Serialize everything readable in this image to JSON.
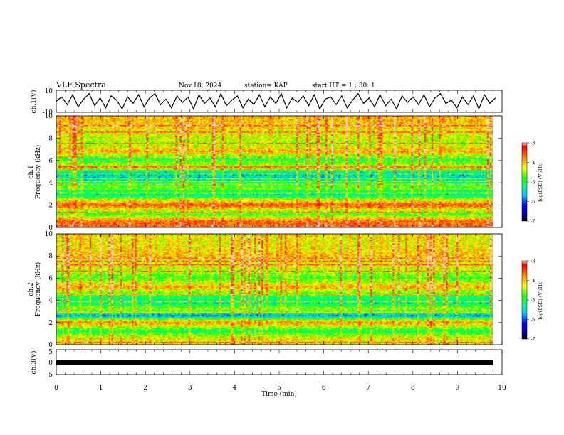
{
  "header": {
    "title": "VLF Spectra",
    "date": "Nov.18, 2024",
    "station": "station= KAP",
    "start_ut": "start  UT =  1 : 30: 1"
  },
  "chart_data": [
    {
      "type": "line",
      "panel": "ch1-waveform",
      "ylabel": "ch.1(V)",
      "ylim": [
        -10,
        10
      ],
      "yticks": [
        "10",
        "-10"
      ],
      "x_range_min": [
        0,
        9.85
      ],
      "series": [
        {
          "values": [
            0,
            4,
            -3,
            6,
            -5,
            2,
            7,
            -4,
            3,
            -6,
            5,
            1,
            -7,
            4,
            -2,
            6,
            -5,
            3,
            7,
            -3,
            2,
            -6,
            5,
            -1,
            4,
            -7,
            6,
            -2,
            3,
            -5,
            7,
            -4,
            1,
            5,
            -6,
            2,
            -3,
            6,
            -5,
            4,
            -2,
            7,
            -6,
            3,
            -1,
            5,
            -4,
            6,
            -7,
            2,
            4,
            -3,
            5,
            -6,
            1,
            7,
            -2,
            3,
            -5,
            6,
            -4,
            2,
            -7,
            5,
            -1,
            4,
            -3,
            6,
            -5,
            3,
            7,
            -2,
            1,
            -6,
            4,
            -3,
            5,
            -7,
            6,
            -2,
            3
          ]
        }
      ]
    },
    {
      "type": "heatmap",
      "panel": "ch1-spectrogram",
      "ylabel_line1": "ch.1",
      "ylabel_line2": "Frequency (kHz)",
      "ylim": [
        0,
        10
      ],
      "yticks": [
        "0",
        "2",
        "4",
        "6",
        "8",
        "10"
      ],
      "colorbar": {
        "label": "log(PSD) (V²/Hz)",
        "range": [
          -7,
          -3
        ],
        "ticks": [
          "-3",
          "-4",
          "-5",
          "-6",
          "-7"
        ]
      },
      "band_profile_by_freq_khz": [
        {
          "freq": 0.5,
          "value": -3.6
        },
        {
          "freq": 1.2,
          "value": -4.9
        },
        {
          "freq": 2.0,
          "value": -3.5
        },
        {
          "freq": 2.6,
          "value": -4.7
        },
        {
          "freq": 3.0,
          "value": -5.6
        },
        {
          "freq": 3.5,
          "value": -4.6
        },
        {
          "freq": 4.2,
          "value": -5.3
        },
        {
          "freq": 4.8,
          "value": -5.6
        },
        {
          "freq": 5.5,
          "value": -4.4
        },
        {
          "freq": 6.2,
          "value": -5.0
        },
        {
          "freq": 6.8,
          "value": -3.9
        },
        {
          "freq": 7.5,
          "value": -4.5
        },
        {
          "freq": 8.5,
          "value": -4.2
        },
        {
          "freq": 9.5,
          "value": -4.0
        }
      ]
    },
    {
      "type": "heatmap",
      "panel": "ch2-spectrogram",
      "ylabel_line1": "ch.2",
      "ylabel_line2": "Frequency (kHz)",
      "ylim": [
        0,
        10
      ],
      "yticks": [
        "0",
        "2",
        "4",
        "6",
        "8",
        "10"
      ],
      "colorbar": {
        "label": "log(PSD) (V²/Hz)",
        "range": [
          -7,
          -3
        ],
        "ticks": [
          "-3",
          "-4",
          "-5",
          "-6",
          "-7"
        ]
      },
      "band_profile_by_freq_khz": [
        {
          "freq": 0.5,
          "value": -4.2
        },
        {
          "freq": 1.2,
          "value": -5.1
        },
        {
          "freq": 2.0,
          "value": -3.8
        },
        {
          "freq": 2.6,
          "value": -5.8
        },
        {
          "freq": 3.2,
          "value": -4.5
        },
        {
          "freq": 3.8,
          "value": -5.4
        },
        {
          "freq": 4.5,
          "value": -4.9
        },
        {
          "freq": 5.2,
          "value": -3.9
        },
        {
          "freq": 6.0,
          "value": -4.8
        },
        {
          "freq": 7.0,
          "value": -4.3
        },
        {
          "freq": 8.0,
          "value": -4.0
        },
        {
          "freq": 9.0,
          "value": -4.2
        }
      ]
    },
    {
      "type": "line",
      "panel": "ch3-waveform",
      "ylabel": "ch.3(V)",
      "ylim": [
        -5,
        5
      ],
      "yticks": [
        "5",
        "0",
        "-5"
      ],
      "xlabel": "Time (min)",
      "xlim": [
        0,
        10
      ],
      "xticks": [
        "0",
        "1",
        "2",
        "3",
        "4",
        "5",
        "6",
        "7",
        "8",
        "9",
        "10"
      ],
      "series": [
        {
          "values": [
            -0.8,
            -0.8
          ]
        }
      ]
    }
  ]
}
